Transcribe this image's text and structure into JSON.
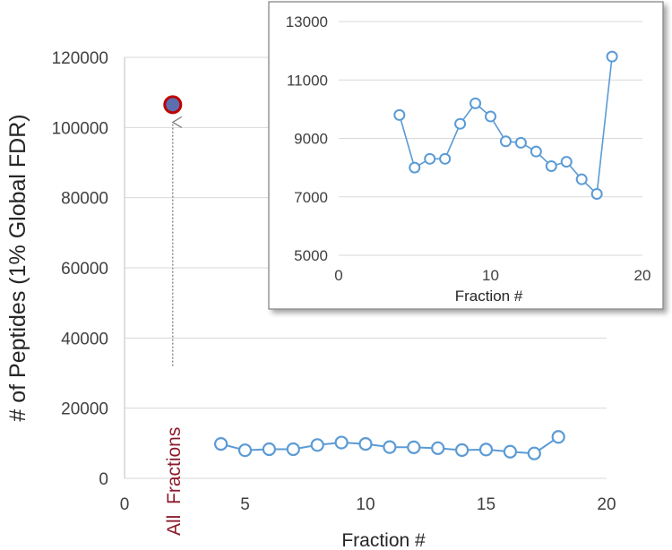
{
  "chart_data": [
    {
      "id": "main",
      "type": "scatter",
      "xlabel": "Fraction #",
      "ylabel": "# of Peptides (1% Global FDR)",
      "xlim": [
        0,
        20
      ],
      "ylim": [
        0,
        120000
      ],
      "x_ticks": [
        "0",
        "5",
        "10",
        "15",
        "20"
      ],
      "y_ticks": [
        "0",
        "20000",
        "40000",
        "60000",
        "80000",
        "100000",
        "120000"
      ],
      "grid": "horizontal",
      "series": [
        {
          "color": "#5b9bd5",
          "marker": "open-circle",
          "line": true,
          "x": [
            4,
            5,
            6,
            7,
            8,
            9,
            10,
            11,
            12,
            13,
            14,
            15,
            16,
            17,
            18
          ],
          "y": [
            9800,
            8000,
            8300,
            8300,
            9500,
            10200,
            9800,
            8900,
            8850,
            8600,
            8050,
            8200,
            7600,
            7100,
            11800
          ]
        },
        {
          "color": "#c00000",
          "marker": "filled-circle",
          "line": false,
          "x": [
            2
          ],
          "y": [
            106500
          ]
        }
      ],
      "annotations": [
        {
          "text": "All  Fractions",
          "color": "#8b1a2b",
          "orientation": "vertical",
          "arrow_to_point": true
        }
      ]
    },
    {
      "id": "inset",
      "type": "line",
      "xlabel": "Fraction #",
      "ylabel": "",
      "xlim": [
        0,
        20
      ],
      "ylim": [
        5000,
        13000
      ],
      "x_ticks": [
        "0",
        "10",
        "20"
      ],
      "y_ticks": [
        "5000",
        "7000",
        "9000",
        "11000",
        "13000"
      ],
      "grid": "horizontal",
      "series": [
        {
          "color": "#5b9bd5",
          "marker": "open-circle",
          "x": [
            4,
            5,
            6,
            7,
            8,
            9,
            10,
            11,
            12,
            13,
            14,
            15,
            16,
            17,
            18
          ],
          "y": [
            9800,
            8000,
            8300,
            8300,
            9500,
            10200,
            9750,
            8900,
            8850,
            8550,
            8050,
            8200,
            7600,
            7100,
            11800
          ]
        }
      ]
    }
  ]
}
